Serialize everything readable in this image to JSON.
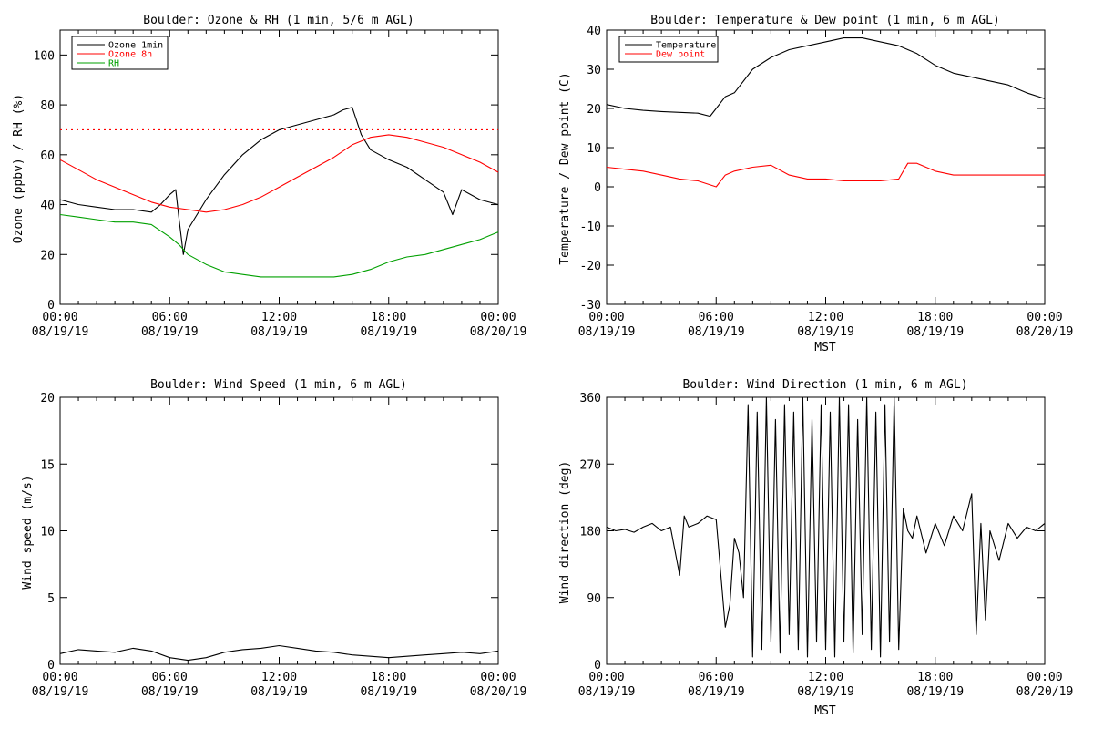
{
  "chart_data": [
    {
      "type": "line",
      "title": "Boulder: Ozone & RH (1 min, 5/6 m AGL)",
      "xlabel": "",
      "ylabel": "Ozone (ppbv) / RH (%)",
      "xlim": [
        "08/19/19 00:00",
        "08/20/19 00:00"
      ],
      "ylim": [
        0,
        110
      ],
      "x_ticks": [
        {
          "time": "00:00",
          "date": "08/19/19"
        },
        {
          "time": "06:00",
          "date": "08/19/19"
        },
        {
          "time": "12:00",
          "date": "08/19/19"
        },
        {
          "time": "18:00",
          "date": "08/19/19"
        },
        {
          "time": "00:00",
          "date": "08/20/19"
        }
      ],
      "y_ticks": [
        0,
        20,
        40,
        60,
        80,
        100
      ],
      "grid": false,
      "legend": "top-left",
      "reference_line": {
        "y": 70,
        "color": "#ff0000",
        "style": "dotted"
      },
      "series": [
        {
          "name": "Ozone 1min",
          "color": "#000000",
          "x": [
            "00:00",
            "01:00",
            "02:00",
            "03:00",
            "04:00",
            "05:00",
            "05:30",
            "06:00",
            "06:20",
            "06:30",
            "06:45",
            "07:00",
            "07:30",
            "08:00",
            "09:00",
            "10:00",
            "11:00",
            "12:00",
            "13:00",
            "14:00",
            "15:00",
            "15:30",
            "16:00",
            "16:30",
            "17:00",
            "18:00",
            "19:00",
            "20:00",
            "21:00",
            "21:30",
            "22:00",
            "23:00",
            "24:00"
          ],
          "y": [
            42,
            40,
            39,
            38,
            38,
            37,
            40,
            44,
            46,
            35,
            20,
            30,
            36,
            42,
            52,
            60,
            66,
            70,
            72,
            74,
            76,
            78,
            79,
            68,
            62,
            58,
            55,
            50,
            45,
            36,
            46,
            42,
            40
          ]
        },
        {
          "name": "Ozone 8h",
          "color": "#ff0000",
          "x": [
            "00:00",
            "01:00",
            "02:00",
            "03:00",
            "04:00",
            "05:00",
            "06:00",
            "07:00",
            "08:00",
            "09:00",
            "10:00",
            "11:00",
            "12:00",
            "13:00",
            "14:00",
            "15:00",
            "16:00",
            "17:00",
            "18:00",
            "19:00",
            "20:00",
            "21:00",
            "22:00",
            "23:00",
            "24:00"
          ],
          "y": [
            58,
            54,
            50,
            47,
            44,
            41,
            39,
            38,
            37,
            38,
            40,
            43,
            47,
            51,
            55,
            59,
            64,
            67,
            68,
            67,
            65,
            63,
            60,
            57,
            53
          ]
        },
        {
          "name": "RH",
          "color": "#00a000",
          "x": [
            "00:00",
            "01:00",
            "02:00",
            "03:00",
            "04:00",
            "05:00",
            "06:00",
            "06:30",
            "07:00",
            "08:00",
            "09:00",
            "10:00",
            "11:00",
            "12:00",
            "13:00",
            "14:00",
            "15:00",
            "16:00",
            "17:00",
            "18:00",
            "19:00",
            "20:00",
            "21:00",
            "22:00",
            "23:00",
            "24:00"
          ],
          "y": [
            36,
            35,
            34,
            33,
            33,
            32,
            27,
            24,
            20,
            16,
            13,
            12,
            11,
            11,
            11,
            11,
            11,
            12,
            14,
            17,
            19,
            20,
            22,
            24,
            26,
            29
          ]
        }
      ]
    },
    {
      "type": "line",
      "title": "Boulder: Temperature & Dew point (1 min, 6 m AGL)",
      "xlabel": "MST",
      "ylabel": "Temperature / Dew point (C)",
      "xlim": [
        "08/19/19 00:00",
        "08/20/19 00:00"
      ],
      "ylim": [
        -30,
        40
      ],
      "x_ticks": [
        {
          "time": "00:00",
          "date": "08/19/19"
        },
        {
          "time": "06:00",
          "date": "08/19/19"
        },
        {
          "time": "12:00",
          "date": "08/19/19"
        },
        {
          "time": "18:00",
          "date": "08/19/19"
        },
        {
          "time": "00:00",
          "date": "08/20/19"
        }
      ],
      "y_ticks": [
        -30,
        -20,
        -10,
        0,
        10,
        20,
        30,
        40
      ],
      "grid": false,
      "legend": "top-left",
      "series": [
        {
          "name": "Temperature",
          "color": "#000000",
          "x": [
            "00:00",
            "01:00",
            "02:00",
            "03:00",
            "04:00",
            "05:00",
            "05:40",
            "06:00",
            "06:30",
            "07:00",
            "08:00",
            "09:00",
            "10:00",
            "11:00",
            "12:00",
            "13:00",
            "14:00",
            "15:00",
            "16:00",
            "17:00",
            "18:00",
            "19:00",
            "20:00",
            "21:00",
            "22:00",
            "23:00",
            "24:00"
          ],
          "y": [
            21,
            20,
            19.5,
            19.2,
            19,
            18.8,
            18,
            20,
            23,
            24,
            30,
            33,
            35,
            36,
            37,
            38,
            38,
            37,
            36,
            34,
            31,
            29,
            28,
            27,
            26,
            24,
            22.5
          ]
        },
        {
          "name": "Dew point",
          "color": "#ff0000",
          "x": [
            "00:00",
            "01:00",
            "02:00",
            "03:00",
            "04:00",
            "05:00",
            "06:00",
            "06:30",
            "07:00",
            "08:00",
            "09:00",
            "10:00",
            "11:00",
            "12:00",
            "13:00",
            "14:00",
            "15:00",
            "16:00",
            "16:30",
            "17:00",
            "18:00",
            "19:00",
            "20:00",
            "21:00",
            "22:00",
            "23:00",
            "24:00"
          ],
          "y": [
            5,
            4.5,
            4,
            3,
            2,
            1.5,
            0,
            3,
            4,
            5,
            5.5,
            3,
            2,
            2,
            1.5,
            1.5,
            1.5,
            2,
            6,
            6,
            4,
            3,
            3,
            3,
            3,
            3,
            3
          ]
        }
      ]
    },
    {
      "type": "line",
      "title": "Boulder: Wind Speed (1 min, 6 m AGL)",
      "xlabel": "",
      "ylabel": "Wind speed (m/s)",
      "xlim": [
        "08/19/19 00:00",
        "08/20/19 00:00"
      ],
      "ylim": [
        0,
        20
      ],
      "x_ticks": [
        {
          "time": "00:00",
          "date": "08/19/19"
        },
        {
          "time": "06:00",
          "date": "08/19/19"
        },
        {
          "time": "12:00",
          "date": "08/19/19"
        },
        {
          "time": "18:00",
          "date": "08/19/19"
        },
        {
          "time": "00:00",
          "date": "08/20/19"
        }
      ],
      "y_ticks": [
        0,
        5,
        10,
        15,
        20
      ],
      "grid": false,
      "series": [
        {
          "color": "#000000",
          "x": [
            "00:00",
            "01:00",
            "02:00",
            "03:00",
            "04:00",
            "05:00",
            "06:00",
            "07:00",
            "08:00",
            "09:00",
            "10:00",
            "11:00",
            "12:00",
            "13:00",
            "14:00",
            "15:00",
            "16:00",
            "17:00",
            "18:00",
            "19:00",
            "20:00",
            "21:00",
            "22:00",
            "23:00",
            "24:00"
          ],
          "y": [
            0.8,
            1.1,
            1.0,
            0.9,
            1.2,
            1.0,
            0.5,
            0.3,
            0.5,
            0.9,
            1.1,
            1.2,
            1.4,
            1.2,
            1.0,
            0.9,
            0.7,
            0.6,
            0.5,
            0.6,
            0.7,
            0.8,
            0.9,
            0.8,
            1.0
          ]
        }
      ]
    },
    {
      "type": "line",
      "title": "Boulder: Wind Direction (1 min, 6 m AGL)",
      "xlabel": "MST",
      "ylabel": "Wind direction (deg)",
      "xlim": [
        "08/19/19 00:00",
        "08/20/19 00:00"
      ],
      "ylim": [
        0,
        360
      ],
      "x_ticks": [
        {
          "time": "00:00",
          "date": "08/19/19"
        },
        {
          "time": "06:00",
          "date": "08/19/19"
        },
        {
          "time": "12:00",
          "date": "08/19/19"
        },
        {
          "time": "18:00",
          "date": "08/19/19"
        },
        {
          "time": "00:00",
          "date": "08/20/19"
        }
      ],
      "y_ticks": [
        0,
        90,
        180,
        270,
        360
      ],
      "grid": false,
      "series": [
        {
          "color": "#000000",
          "x": [
            "00:00",
            "00:30",
            "01:00",
            "01:30",
            "02:00",
            "02:30",
            "03:00",
            "03:30",
            "04:00",
            "04:15",
            "04:30",
            "05:00",
            "05:30",
            "06:00",
            "06:30",
            "06:45",
            "07:00",
            "07:15",
            "07:30",
            "07:45",
            "08:00",
            "08:15",
            "08:30",
            "08:45",
            "09:00",
            "09:15",
            "09:30",
            "09:45",
            "10:00",
            "10:15",
            "10:30",
            "10:45",
            "11:00",
            "11:15",
            "11:30",
            "11:45",
            "12:00",
            "12:15",
            "12:30",
            "12:45",
            "13:00",
            "13:15",
            "13:30",
            "13:45",
            "14:00",
            "14:15",
            "14:30",
            "14:45",
            "15:00",
            "15:15",
            "15:30",
            "15:45",
            "16:00",
            "16:15",
            "16:30",
            "16:45",
            "17:00",
            "17:30",
            "18:00",
            "18:30",
            "19:00",
            "19:30",
            "20:00",
            "20:15",
            "20:30",
            "20:45",
            "21:00",
            "21:30",
            "22:00",
            "22:30",
            "23:00",
            "23:30",
            "24:00"
          ],
          "y": [
            185,
            180,
            182,
            178,
            185,
            190,
            180,
            185,
            120,
            200,
            185,
            190,
            200,
            195,
            50,
            80,
            170,
            150,
            90,
            350,
            10,
            340,
            20,
            360,
            30,
            330,
            15,
            350,
            40,
            340,
            20,
            360,
            10,
            330,
            30,
            350,
            20,
            340,
            10,
            360,
            30,
            350,
            15,
            330,
            40,
            360,
            20,
            340,
            10,
            350,
            30,
            360,
            20,
            210,
            180,
            170,
            200,
            150,
            190,
            160,
            200,
            180,
            230,
            40,
            190,
            60,
            180,
            140,
            190,
            170,
            185,
            180,
            190
          ]
        }
      ]
    }
  ]
}
